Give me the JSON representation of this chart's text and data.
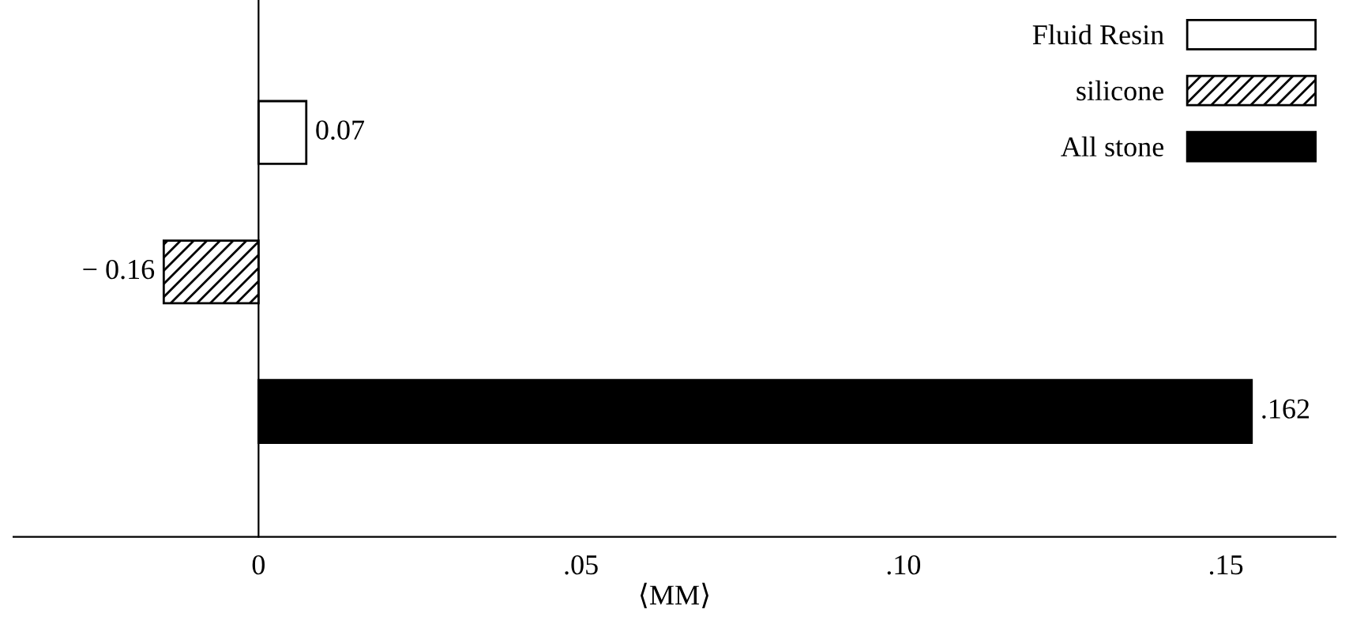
{
  "chart_data": {
    "type": "bar",
    "orientation": "horizontal",
    "categories": [
      null,
      null,
      null
    ],
    "series": [
      {
        "name": "Fluid Resin",
        "color": "#ffffff",
        "values": [
          0.0074,
          null,
          null
        ]
      },
      {
        "name": "silicone",
        "color": "#000000",
        "values": [
          null,
          -0.0147,
          null
        ]
      },
      {
        "name": "All stone",
        "color": "#000000",
        "values": [
          null,
          null,
          0.154
        ]
      }
    ],
    "annotations": [
      "0.07",
      "− 0.16",
      ".162"
    ],
    "xlim": [
      -0.038,
      0.167
    ],
    "xticks": [
      0,
      {
        "value": 0.05,
        "label": ".05"
      },
      {
        "value": 0.1,
        "label": ".10"
      },
      {
        "value": 0.15,
        "label": ".15"
      }
    ],
    "xlabel": "⟨MM⟩",
    "tick_labels": "x",
    "legend": "top right"
  }
}
